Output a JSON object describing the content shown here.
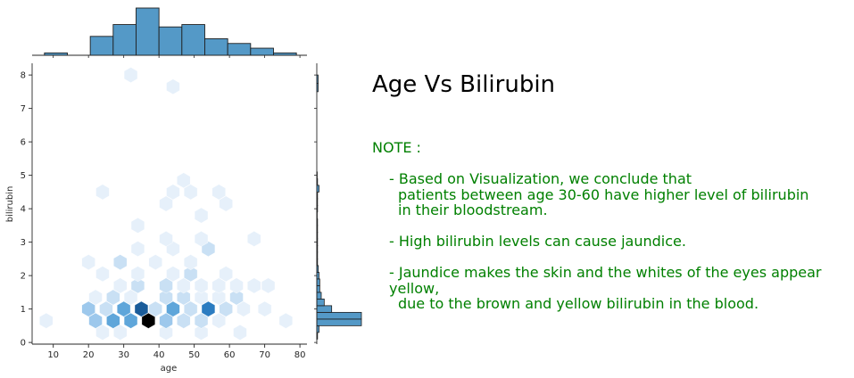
{
  "chart_data": {
    "type": "hexbin-joint",
    "title": "Age Vs Bilirubin",
    "xlabel": "age",
    "ylabel": "bilirubin",
    "xlim": [
      4,
      82
    ],
    "ylim": [
      -0.05,
      8.35
    ],
    "xticks": [
      "10",
      "20",
      "30",
      "40",
      "50",
      "60",
      "70",
      "80"
    ],
    "yticks": [
      "0",
      "1",
      "2",
      "3",
      "4",
      "5",
      "6",
      "7",
      "8"
    ],
    "hexbins": [
      {
        "x": 8,
        "y": 0.65,
        "n": 1
      },
      {
        "x": 24,
        "y": 0.3,
        "n": 1
      },
      {
        "x": 29,
        "y": 0.3,
        "n": 1
      },
      {
        "x": 42,
        "y": 0.3,
        "n": 1
      },
      {
        "x": 52,
        "y": 0.3,
        "n": 1
      },
      {
        "x": 63,
        "y": 0.3,
        "n": 1
      },
      {
        "x": 22,
        "y": 0.65,
        "n": 4
      },
      {
        "x": 27,
        "y": 0.65,
        "n": 6
      },
      {
        "x": 32,
        "y": 0.65,
        "n": 5
      },
      {
        "x": 37,
        "y": 0.65,
        "n": 10
      },
      {
        "x": 42,
        "y": 0.65,
        "n": 4
      },
      {
        "x": 47,
        "y": 0.65,
        "n": 2
      },
      {
        "x": 52,
        "y": 0.65,
        "n": 3
      },
      {
        "x": 57,
        "y": 0.65,
        "n": 1
      },
      {
        "x": 76,
        "y": 0.65,
        "n": 1
      },
      {
        "x": 20,
        "y": 1.0,
        "n": 4
      },
      {
        "x": 25,
        "y": 1.0,
        "n": 3
      },
      {
        "x": 30,
        "y": 1.0,
        "n": 6
      },
      {
        "x": 35,
        "y": 1.0,
        "n": 8
      },
      {
        "x": 39,
        "y": 1.0,
        "n": 3
      },
      {
        "x": 44,
        "y": 1.0,
        "n": 6
      },
      {
        "x": 49,
        "y": 1.0,
        "n": 2
      },
      {
        "x": 54,
        "y": 1.0,
        "n": 7
      },
      {
        "x": 59,
        "y": 1.0,
        "n": 2
      },
      {
        "x": 64,
        "y": 1.0,
        "n": 1
      },
      {
        "x": 70,
        "y": 1.0,
        "n": 1
      },
      {
        "x": 22,
        "y": 1.35,
        "n": 1
      },
      {
        "x": 27,
        "y": 1.35,
        "n": 2
      },
      {
        "x": 32,
        "y": 1.35,
        "n": 1
      },
      {
        "x": 42,
        "y": 1.35,
        "n": 2
      },
      {
        "x": 47,
        "y": 1.35,
        "n": 2
      },
      {
        "x": 52,
        "y": 1.35,
        "n": 1
      },
      {
        "x": 57,
        "y": 1.35,
        "n": 1
      },
      {
        "x": 62,
        "y": 1.35,
        "n": 2
      },
      {
        "x": 29,
        "y": 1.7,
        "n": 1
      },
      {
        "x": 34,
        "y": 1.7,
        "n": 3
      },
      {
        "x": 42,
        "y": 1.7,
        "n": 2
      },
      {
        "x": 47,
        "y": 1.7,
        "n": 1
      },
      {
        "x": 52,
        "y": 1.7,
        "n": 1
      },
      {
        "x": 57,
        "y": 1.7,
        "n": 1
      },
      {
        "x": 62,
        "y": 1.7,
        "n": 1
      },
      {
        "x": 67,
        "y": 1.7,
        "n": 1
      },
      {
        "x": 71,
        "y": 1.7,
        "n": 1
      },
      {
        "x": 24,
        "y": 2.05,
        "n": 1
      },
      {
        "x": 34,
        "y": 2.05,
        "n": 1
      },
      {
        "x": 44,
        "y": 2.05,
        "n": 1
      },
      {
        "x": 49,
        "y": 2.05,
        "n": 2
      },
      {
        "x": 59,
        "y": 2.05,
        "n": 1
      },
      {
        "x": 20,
        "y": 2.4,
        "n": 1
      },
      {
        "x": 29,
        "y": 2.4,
        "n": 2
      },
      {
        "x": 39,
        "y": 2.4,
        "n": 1
      },
      {
        "x": 49,
        "y": 2.4,
        "n": 1
      },
      {
        "x": 34,
        "y": 2.8,
        "n": 1
      },
      {
        "x": 44,
        "y": 2.8,
        "n": 1
      },
      {
        "x": 54,
        "y": 2.8,
        "n": 3
      },
      {
        "x": 42,
        "y": 3.1,
        "n": 1
      },
      {
        "x": 52,
        "y": 3.1,
        "n": 1
      },
      {
        "x": 67,
        "y": 3.1,
        "n": 1
      },
      {
        "x": 34,
        "y": 3.5,
        "n": 1
      },
      {
        "x": 52,
        "y": 3.8,
        "n": 1
      },
      {
        "x": 42,
        "y": 4.15,
        "n": 1
      },
      {
        "x": 59,
        "y": 4.15,
        "n": 1
      },
      {
        "x": 24,
        "y": 4.5,
        "n": 1
      },
      {
        "x": 44,
        "y": 4.5,
        "n": 1
      },
      {
        "x": 49,
        "y": 4.5,
        "n": 1
      },
      {
        "x": 57,
        "y": 4.5,
        "n": 1
      },
      {
        "x": 47,
        "y": 4.85,
        "n": 1
      },
      {
        "x": 44,
        "y": 7.65,
        "n": 1
      },
      {
        "x": 32,
        "y": 8.0,
        "n": 1
      }
    ],
    "marginal_x": {
      "bin_edges": [
        7.5,
        14,
        20.5,
        27,
        33.5,
        40,
        46.5,
        53,
        59.5,
        66,
        72.5,
        79
      ],
      "counts": [
        1,
        0,
        8,
        13,
        20,
        12,
        13,
        7,
        5,
        3,
        1
      ]
    },
    "marginal_y": {
      "bin_edges": [
        0.1,
        0.3,
        0.5,
        0.7,
        0.9,
        1.1,
        1.3,
        1.5,
        1.7,
        1.9,
        2.1,
        2.3,
        2.5,
        2.7,
        2.9,
        3.1,
        3.3,
        3.5,
        3.7,
        3.9,
        4.1,
        4.3,
        4.5,
        4.7,
        4.9,
        5.1
      ],
      "counts": [
        0.5,
        1.5,
        30,
        30,
        10,
        5,
        3,
        2,
        2,
        1.5,
        1,
        0.5,
        0.5,
        0.5,
        0.5,
        0.5,
        0.5,
        0.5,
        0.3,
        0.5,
        0.5,
        0.5,
        1.5,
        0.5,
        0.3
      ],
      "top_bins": [
        {
          "lo": 7.5,
          "hi": 7.75,
          "count": 0.3
        },
        {
          "lo": 7.75,
          "hi": 8.0,
          "count": 0.3
        }
      ]
    },
    "colormap": [
      "#e6f0fa",
      "#c9e0f4",
      "#9dc8ec",
      "#5fa6da",
      "#2b7cc1",
      "#1a5c9a",
      "#000000"
    ]
  },
  "note": {
    "heading": "NOTE :",
    "bullets": [
      [
        "- Based on Visualization, we conclude that",
        "patients between age 30-60 have higher level of bilirubin",
        "in their bloodstream."
      ],
      [
        "- High bilirubin levels can cause jaundice."
      ],
      [
        "- Jaundice makes the skin and the whites of the eyes appear yellow,",
        "due to the brown and yellow bilirubin in the blood."
      ]
    ]
  }
}
